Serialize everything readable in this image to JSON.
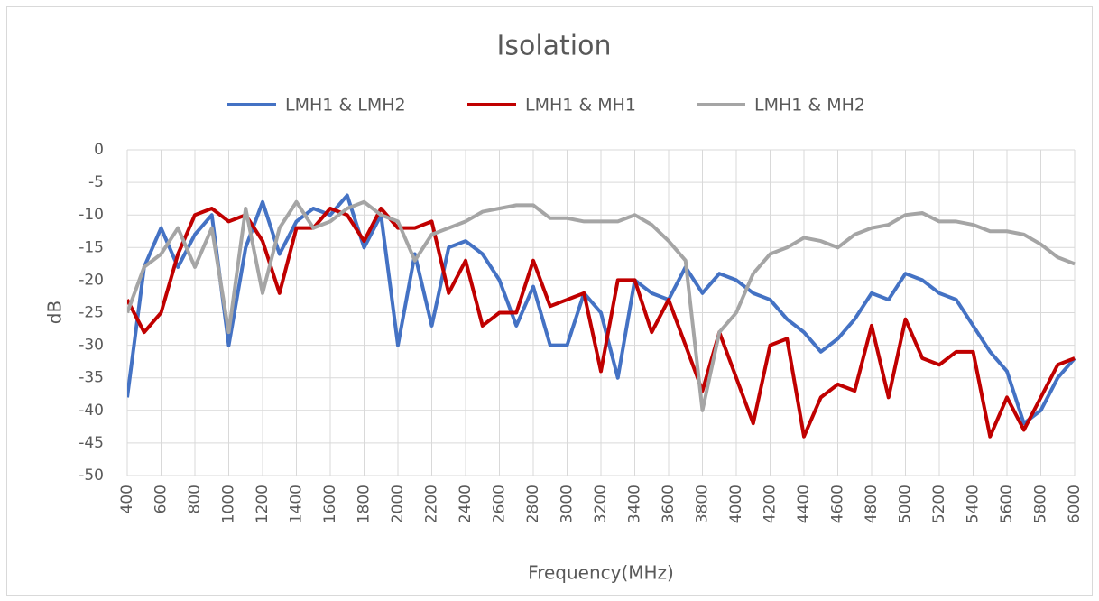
{
  "chart_data": {
    "type": "line",
    "title": "Isolation",
    "x_label": "Frequency(MHz)",
    "y_label": "dB",
    "x": [
      400,
      500,
      600,
      700,
      800,
      900,
      1000,
      1100,
      1200,
      1300,
      1400,
      1500,
      1600,
      1700,
      1800,
      1900,
      2000,
      2100,
      2200,
      2300,
      2400,
      2500,
      2600,
      2700,
      2800,
      2900,
      3000,
      3100,
      3200,
      3300,
      3400,
      3500,
      3600,
      3700,
      3800,
      3900,
      4000,
      4100,
      4200,
      4300,
      4400,
      4500,
      4600,
      4700,
      4800,
      4900,
      5000,
      5100,
      5200,
      5300,
      5400,
      5500,
      5600,
      5700,
      5800,
      5900,
      6000
    ],
    "series": [
      {
        "name": "LMH1 & LMH2",
        "color": "#4472c4",
        "values": [
          -38,
          -18,
          -12,
          -18,
          -13,
          -10,
          -30,
          -15,
          -8,
          -16,
          -11,
          -9,
          -10,
          -7,
          -15,
          -10,
          -30,
          -16,
          -27,
          -15,
          -14,
          -16,
          -20,
          -27,
          -21,
          -30,
          -30,
          -22,
          -25,
          -35,
          -20,
          -22,
          -23,
          -18,
          -22,
          -19,
          -20,
          -22,
          -23,
          -26,
          -28,
          -31,
          -29,
          -26,
          -22,
          -23,
          -19,
          -20,
          -22,
          -23,
          -27,
          -31,
          -34,
          -42,
          -40,
          -35,
          -32
        ]
      },
      {
        "name": "LMH1 & MH1",
        "color": "#c00000",
        "values": [
          -23,
          -28,
          -25,
          -16,
          -10,
          -9,
          -11,
          -10,
          -14,
          -22,
          -12,
          -12,
          -9,
          -10,
          -14,
          -9,
          -12,
          -12,
          -11,
          -22,
          -17,
          -27,
          -25,
          -25,
          -17,
          -24,
          -23,
          -22,
          -34,
          -20,
          -20,
          -28,
          -23,
          -30,
          -37,
          -28,
          -35,
          -42,
          -30,
          -29,
          -44,
          -38,
          -36,
          -37,
          -27,
          -38,
          -26,
          -32,
          -33,
          -31,
          -31,
          -44,
          -38,
          -43,
          -38,
          -33,
          -32
        ]
      },
      {
        "name": "LMH1 & MH2",
        "color": "#a5a5a5",
        "values": [
          -25,
          -18,
          -16,
          -12,
          -18,
          -12,
          -28,
          -9,
          -22,
          -12,
          -8,
          -12,
          -11,
          -9,
          -8,
          -10,
          -11,
          -17,
          -13,
          -12,
          -11,
          -9.5,
          -9,
          -8.5,
          -8.5,
          -10.5,
          -10.5,
          -11,
          -11,
          -11,
          -10,
          -11.5,
          -14,
          -17,
          -40,
          -28,
          -25,
          -19,
          -16,
          -15,
          -13.5,
          -14,
          -15,
          -13,
          -12,
          -11.5,
          -10,
          -9.7,
          -11,
          -11,
          -11.5,
          -12.5,
          -12.5,
          -13,
          -14.5,
          -16.5,
          -17.5
        ]
      }
    ],
    "xlim": [
      400,
      6000
    ],
    "ylim": [
      -50,
      0
    ],
    "xticks": [
      400,
      600,
      800,
      1000,
      1200,
      1400,
      1600,
      1800,
      2000,
      2200,
      2400,
      2600,
      2800,
      3000,
      3200,
      3400,
      3600,
      3800,
      4000,
      4200,
      4400,
      4600,
      4800,
      5000,
      5200,
      5400,
      5600,
      5800,
      6000
    ],
    "yticks": [
      -50,
      -45,
      -40,
      -35,
      -30,
      -25,
      -20,
      -15,
      -10,
      -5,
      0
    ],
    "grid": true,
    "legend": "top"
  }
}
